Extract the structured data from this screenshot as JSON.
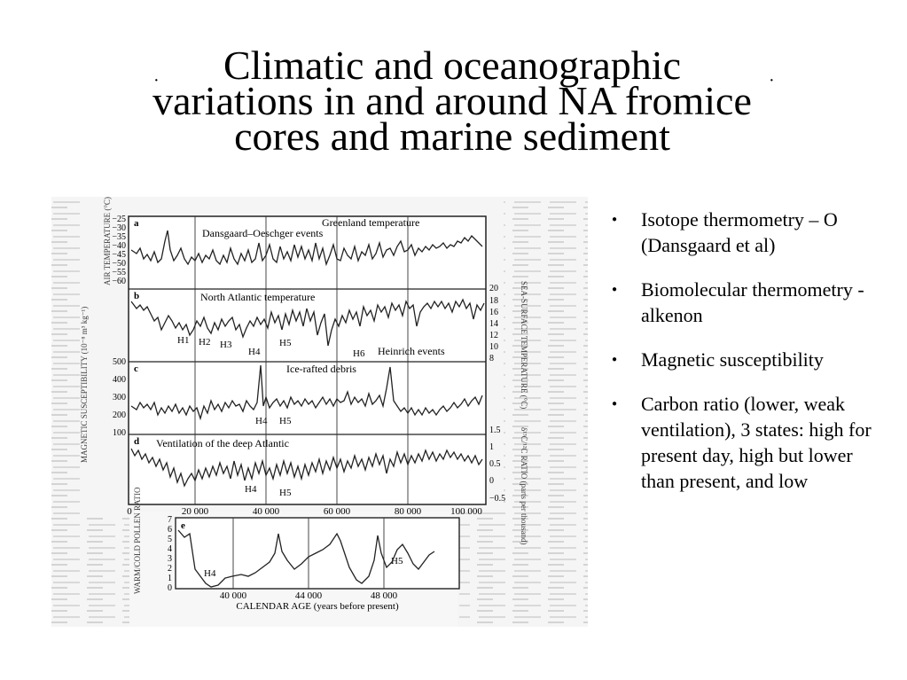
{
  "slide": {
    "title_lines": [
      "Climatic and oceanographic",
      "variations in and around NA fromice",
      "cores and marine sediment"
    ],
    "bullets": [
      "Isotope thermometry – O (Dansgaard et al)",
      "Biomolecular thermometry - alkenon",
      "Magnetic susceptibility",
      "Carbon ratio (lower, weak ventilation), 3 states: high for present day, high but lower than present, and low"
    ]
  },
  "figure": {
    "panel_a": {
      "letter": "a",
      "title": "Greenland temperature",
      "annotation": "Dansgaard–Oeschger events",
      "ylabel": "AIR TEMPERATURE (°C)",
      "ticks": [
        "−25",
        "−30",
        "−35",
        "−40",
        "−45",
        "−50",
        "−55",
        "−60"
      ]
    },
    "panel_b": {
      "letter": "b",
      "title": "North Atlantic temperature",
      "annotation": "Heinrich events",
      "ylabel": "SEA-SURFACE TEMPERATURE (°C)",
      "ticks": [
        "20",
        "18",
        "16",
        "14",
        "12",
        "10",
        "8"
      ],
      "events": [
        "H1",
        "H2",
        "H3",
        "H4",
        "H5",
        "H6"
      ]
    },
    "panel_c": {
      "letter": "c",
      "title": "Ice-rafted debris",
      "ylabel": "MAGNETIC SUSCEPTIBILITY (10⁻⁸ m³ kg⁻¹)",
      "ticks": [
        "500",
        "400",
        "300",
        "200",
        "100"
      ],
      "events": [
        "H4",
        "H5"
      ]
    },
    "panel_d": {
      "letter": "d",
      "title": "Ventilation of the deep Atlantic",
      "ylabel": "δ¹³C/¹²C RATIO (parts per thousand)",
      "ticks": [
        "1.5",
        "1",
        "0.5",
        "0",
        "−0.5"
      ],
      "events": [
        "H4",
        "H5"
      ]
    },
    "x_ticks": [
      "0",
      "20 000",
      "40 000",
      "60 000",
      "80 000",
      "100 000"
    ],
    "panel_e": {
      "letter": "e",
      "ylabel": "WARM/COLD POLLEN RATIO",
      "ticks": [
        "7",
        "6",
        "5",
        "4",
        "3",
        "2",
        "1",
        "0"
      ],
      "events": [
        "H4",
        "H5"
      ],
      "x_ticks": [
        "40 000",
        "44 000",
        "48 000"
      ],
      "xlabel": "CALENDAR AGE (years before present)"
    }
  }
}
